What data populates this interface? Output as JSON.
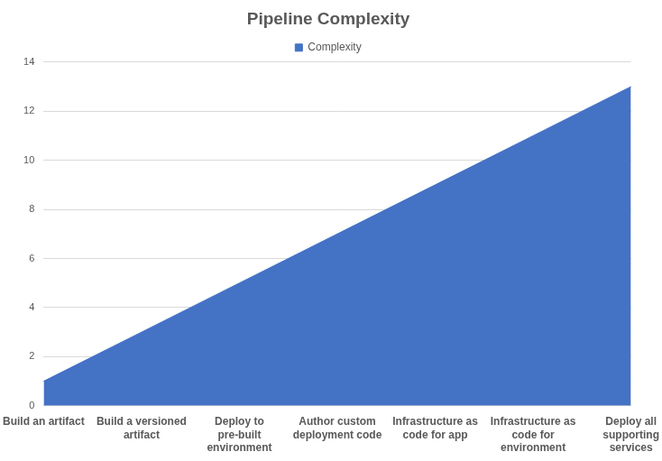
{
  "chart_data": {
    "type": "area",
    "title": "Pipeline Complexity",
    "categories": [
      "Build an artifact",
      "Build a versioned artifact",
      "Deploy to pre-built environment",
      "Author custom deployment code",
      "Infrastructure as code for app",
      "Infrastructure as code for environment",
      "Deploy all supporting services"
    ],
    "series": [
      {
        "name": "Complexity",
        "color": "#4472c4",
        "values": [
          1,
          3,
          5,
          7,
          9,
          11,
          13
        ]
      }
    ],
    "ylim": [
      0,
      14
    ],
    "yticks": [
      0,
      2,
      4,
      6,
      8,
      10,
      12,
      14
    ],
    "grid": true,
    "legend": "top"
  }
}
